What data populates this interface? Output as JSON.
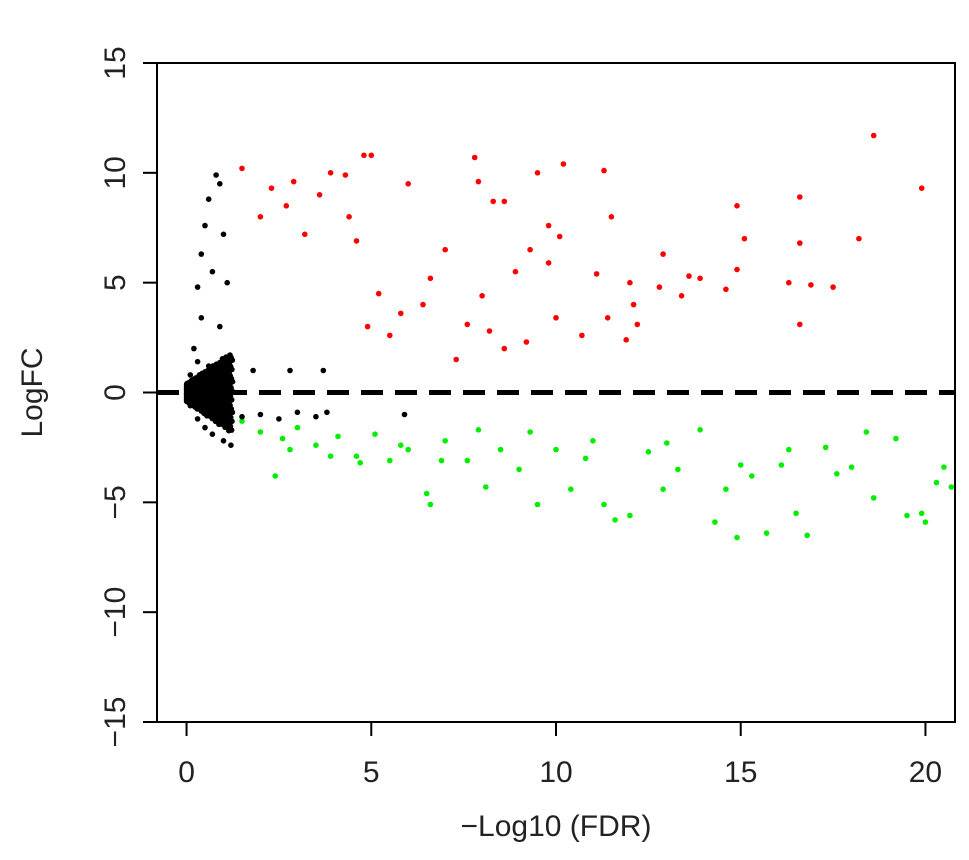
{
  "chart_data": {
    "type": "scatter",
    "title": "",
    "xlabel": "−Log10 (FDR)",
    "ylabel": "LogFC",
    "xlim": [
      -0.8,
      20.8
    ],
    "ylim": [
      -15,
      15
    ],
    "xticks": [
      0,
      5,
      10,
      15,
      20
    ],
    "yticks": [
      -15,
      -10,
      -5,
      0,
      5,
      10,
      15
    ],
    "xtick_labels": [
      "0",
      "5",
      "10",
      "15",
      "20"
    ],
    "ytick_labels": [
      "−15",
      "−10",
      "−5",
      "0",
      "5",
      "10",
      "15"
    ],
    "grid": false,
    "legend": "none",
    "reference_line": {
      "y": 0,
      "style": "dashed",
      "color": "#000000"
    },
    "colors": {
      "up": "#ff0000",
      "down": "#00ee00",
      "not_significant": "#000000"
    },
    "series": [
      {
        "color": "#ff0000",
        "points": [
          [
            18.6,
            11.7
          ],
          [
            4.8,
            10.8
          ],
          [
            5.0,
            10.8
          ],
          [
            7.8,
            10.7
          ],
          [
            10.2,
            10.4
          ],
          [
            1.5,
            10.2
          ],
          [
            11.3,
            10.1
          ],
          [
            9.5,
            10.0
          ],
          [
            3.9,
            10.0
          ],
          [
            4.3,
            9.9
          ],
          [
            7.9,
            9.6
          ],
          [
            6.0,
            9.5
          ],
          [
            2.9,
            9.6
          ],
          [
            19.9,
            9.3
          ],
          [
            16.6,
            8.9
          ],
          [
            8.3,
            8.7
          ],
          [
            8.6,
            8.7
          ],
          [
            11.5,
            8.0
          ],
          [
            14.9,
            8.5
          ],
          [
            15.1,
            7.0
          ],
          [
            18.2,
            7.0
          ],
          [
            16.6,
            6.8
          ],
          [
            9.8,
            7.6
          ],
          [
            10.1,
            7.1
          ],
          [
            7.0,
            6.5
          ],
          [
            12.9,
            6.3
          ],
          [
            11.1,
            5.4
          ],
          [
            13.6,
            5.3
          ],
          [
            13.9,
            5.2
          ],
          [
            14.9,
            5.6
          ],
          [
            16.3,
            5.0
          ],
          [
            16.9,
            4.9
          ],
          [
            17.5,
            4.8
          ],
          [
            12.8,
            4.8
          ],
          [
            12.0,
            5.0
          ],
          [
            13.4,
            4.4
          ],
          [
            14.6,
            4.7
          ],
          [
            12.1,
            4.0
          ],
          [
            12.2,
            3.1
          ],
          [
            11.4,
            3.4
          ],
          [
            10.7,
            2.6
          ],
          [
            11.9,
            2.4
          ],
          [
            16.6,
            3.1
          ],
          [
            7.3,
            1.5
          ],
          [
            8.6,
            2.0
          ],
          [
            9.2,
            2.3
          ],
          [
            10.0,
            3.4
          ],
          [
            9.8,
            5.9
          ],
          [
            9.3,
            6.5
          ],
          [
            8.9,
            5.5
          ],
          [
            8.0,
            4.4
          ],
          [
            7.6,
            3.1
          ],
          [
            8.2,
            2.8
          ],
          [
            6.6,
            5.2
          ],
          [
            6.4,
            4.0
          ],
          [
            5.8,
            3.6
          ],
          [
            5.5,
            2.6
          ],
          [
            5.2,
            4.5
          ],
          [
            4.9,
            3.0
          ],
          [
            4.6,
            6.9
          ],
          [
            4.4,
            8.0
          ],
          [
            3.6,
            9.0
          ],
          [
            3.2,
            7.2
          ],
          [
            2.7,
            8.5
          ],
          [
            2.3,
            9.3
          ],
          [
            2.0,
            8.0
          ]
        ]
      },
      {
        "color": "#00ee00",
        "points": [
          [
            1.5,
            -1.3
          ],
          [
            2.0,
            -1.8
          ],
          [
            2.6,
            -2.1
          ],
          [
            3.0,
            -1.6
          ],
          [
            3.5,
            -2.4
          ],
          [
            4.1,
            -2.0
          ],
          [
            4.6,
            -2.9
          ],
          [
            5.1,
            -1.9
          ],
          [
            5.5,
            -3.1
          ],
          [
            6.0,
            -2.6
          ],
          [
            6.5,
            -4.6
          ],
          [
            6.6,
            -5.1
          ],
          [
            7.0,
            -2.2
          ],
          [
            7.6,
            -3.1
          ],
          [
            8.1,
            -4.3
          ],
          [
            8.5,
            -2.6
          ],
          [
            9.0,
            -3.5
          ],
          [
            9.5,
            -5.1
          ],
          [
            10.0,
            -2.6
          ],
          [
            10.4,
            -4.4
          ],
          [
            10.8,
            -3.0
          ],
          [
            11.3,
            -5.1
          ],
          [
            11.6,
            -5.8
          ],
          [
            12.0,
            -5.6
          ],
          [
            12.5,
            -2.7
          ],
          [
            12.9,
            -4.4
          ],
          [
            13.3,
            -3.5
          ],
          [
            13.9,
            -1.7
          ],
          [
            14.3,
            -5.9
          ],
          [
            14.6,
            -4.4
          ],
          [
            14.9,
            -6.6
          ],
          [
            15.3,
            -3.8
          ],
          [
            15.7,
            -6.4
          ],
          [
            16.1,
            -3.3
          ],
          [
            16.5,
            -5.5
          ],
          [
            16.8,
            -6.5
          ],
          [
            17.3,
            -2.5
          ],
          [
            17.6,
            -3.7
          ],
          [
            18.0,
            -3.4
          ],
          [
            18.4,
            -1.8
          ],
          [
            18.6,
            -4.8
          ],
          [
            19.2,
            -2.1
          ],
          [
            19.5,
            -5.6
          ],
          [
            19.9,
            -5.5
          ],
          [
            20.0,
            -5.9
          ],
          [
            20.3,
            -4.1
          ],
          [
            20.5,
            -3.4
          ],
          [
            20.7,
            -4.3
          ],
          [
            16.3,
            -2.6
          ],
          [
            15.0,
            -3.3
          ],
          [
            13.0,
            -2.3
          ],
          [
            11.0,
            -2.2
          ],
          [
            9.3,
            -1.8
          ],
          [
            7.9,
            -1.7
          ],
          [
            6.9,
            -3.1
          ],
          [
            5.8,
            -2.4
          ],
          [
            4.7,
            -3.2
          ],
          [
            3.9,
            -2.9
          ],
          [
            2.8,
            -2.6
          ],
          [
            2.4,
            -3.8
          ]
        ]
      },
      {
        "color": "#000000",
        "points": [
          [
            0.8,
            9.9
          ],
          [
            0.9,
            9.5
          ],
          [
            0.6,
            8.8
          ],
          [
            0.5,
            7.6
          ],
          [
            0.4,
            6.3
          ],
          [
            1.0,
            7.2
          ],
          [
            0.3,
            4.8
          ],
          [
            0.7,
            5.5
          ],
          [
            0.2,
            2.0
          ],
          [
            0.4,
            3.4
          ],
          [
            1.1,
            5.0
          ],
          [
            0.9,
            3.0
          ],
          [
            0.1,
            0.8
          ],
          [
            0.3,
            1.4
          ],
          [
            0.6,
            1.2
          ],
          [
            0.1,
            -0.6
          ],
          [
            0.3,
            -1.2
          ],
          [
            0.5,
            -1.6
          ],
          [
            0.7,
            -1.9
          ],
          [
            1.0,
            -2.2
          ],
          [
            1.2,
            -2.4
          ],
          [
            1.5,
            -1.1
          ],
          [
            2.0,
            -1.0
          ],
          [
            2.5,
            -1.2
          ],
          [
            3.0,
            -0.9
          ],
          [
            3.5,
            -1.1
          ],
          [
            3.8,
            -0.9
          ],
          [
            5.9,
            -1.0
          ],
          [
            1.8,
            1.0
          ],
          [
            2.8,
            1.0
          ],
          [
            3.7,
            1.0
          ],
          [
            0.2,
            0.5
          ]
        ]
      }
    ]
  }
}
